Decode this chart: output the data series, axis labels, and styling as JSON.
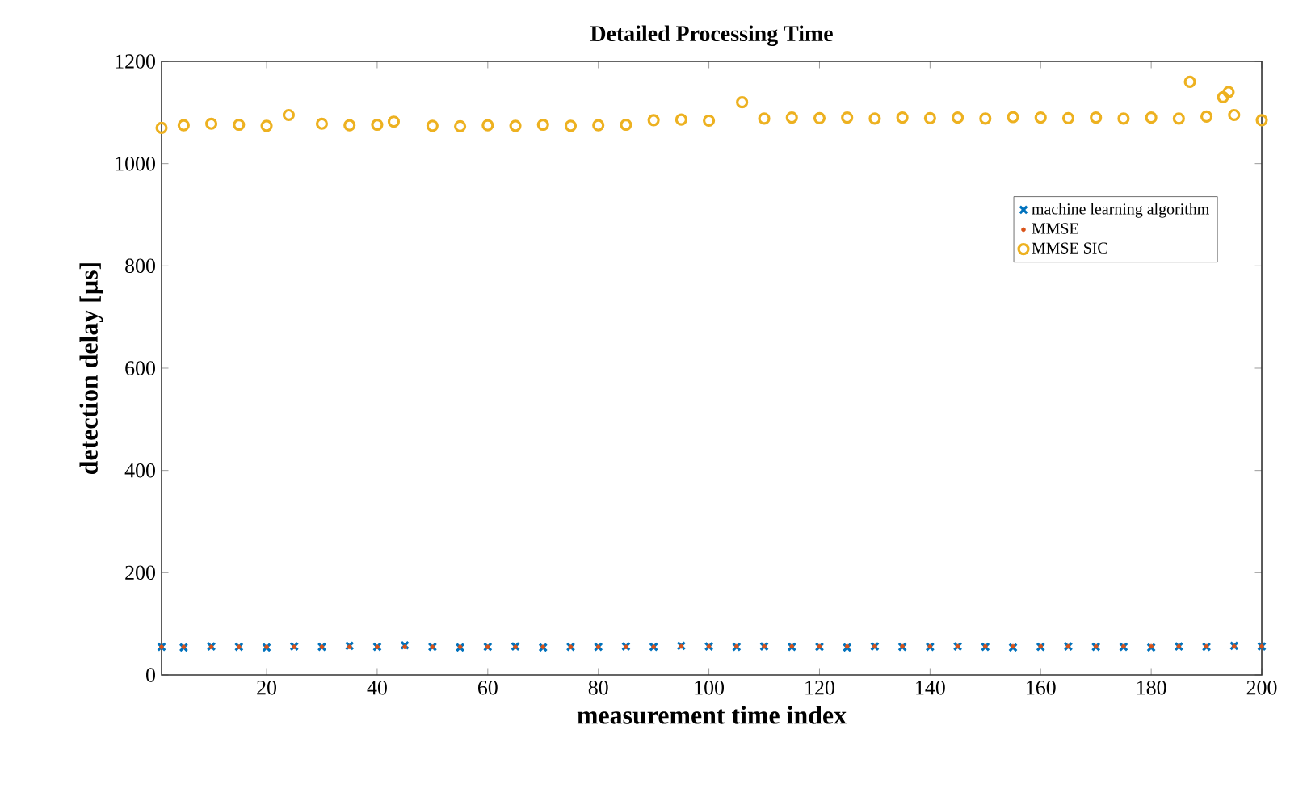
{
  "chart_data": {
    "type": "scatter",
    "title": "Detailed Processing Time",
    "xlabel": "measurement time index",
    "ylabel": "detection delay [µs]",
    "xlim": [
      1,
      200
    ],
    "ylim": [
      0,
      1200
    ],
    "xticks": [
      20,
      40,
      60,
      80,
      100,
      120,
      140,
      160,
      180,
      200
    ],
    "yticks": [
      0,
      200,
      400,
      600,
      800,
      1000,
      1200
    ],
    "grid": false,
    "legend": "top right",
    "series": [
      {
        "name": "machine learning algorithm",
        "color": "#0072bd",
        "marker": "cross",
        "x": [
          1,
          5,
          10,
          15,
          20,
          25,
          30,
          35,
          40,
          45,
          50,
          55,
          60,
          65,
          70,
          75,
          80,
          85,
          90,
          95,
          100,
          105,
          110,
          115,
          120,
          125,
          130,
          135,
          140,
          145,
          150,
          155,
          160,
          165,
          170,
          175,
          180,
          185,
          190,
          195,
          200
        ],
        "values": [
          55,
          54,
          56,
          55,
          54,
          56,
          55,
          57,
          55,
          58,
          55,
          54,
          55,
          56,
          54,
          55,
          55,
          56,
          55,
          57,
          56,
          55,
          56,
          55,
          55,
          54,
          56,
          55,
          55,
          56,
          55,
          54,
          55,
          56,
          55,
          55,
          54,
          56,
          55,
          57,
          56
        ]
      },
      {
        "name": "MMSE",
        "color": "#d95319",
        "marker": "circle",
        "x": [
          1,
          5,
          10,
          15,
          20,
          25,
          30,
          35,
          40,
          45,
          50,
          55,
          60,
          65,
          70,
          75,
          80,
          85,
          90,
          95,
          100,
          105,
          110,
          115,
          120,
          125,
          130,
          135,
          140,
          145,
          150,
          155,
          160,
          165,
          170,
          175,
          180,
          185,
          190,
          195,
          200
        ],
        "values": [
          55,
          55,
          55,
          55,
          55,
          55,
          55,
          55,
          55,
          55,
          55,
          55,
          55,
          55,
          55,
          55,
          55,
          55,
          55,
          56,
          56,
          56,
          56,
          56,
          56,
          56,
          56,
          56,
          56,
          56,
          56,
          56,
          56,
          56,
          56,
          56,
          56,
          56,
          56,
          56,
          56
        ]
      },
      {
        "name": "MMSE SIC",
        "color": "#edb120",
        "marker": "circle",
        "x": [
          1,
          5,
          10,
          15,
          20,
          24,
          30,
          35,
          40,
          43,
          50,
          55,
          60,
          65,
          70,
          75,
          80,
          85,
          90,
          95,
          100,
          106,
          110,
          115,
          120,
          125,
          130,
          135,
          140,
          145,
          150,
          155,
          160,
          165,
          170,
          175,
          180,
          185,
          187,
          190,
          193,
          194,
          195,
          200
        ],
        "values": [
          1070,
          1075,
          1078,
          1076,
          1074,
          1095,
          1078,
          1075,
          1076,
          1082,
          1074,
          1073,
          1075,
          1074,
          1076,
          1074,
          1075,
          1076,
          1085,
          1086,
          1084,
          1120,
          1088,
          1090,
          1089,
          1090,
          1088,
          1090,
          1089,
          1090,
          1088,
          1091,
          1090,
          1089,
          1090,
          1088,
          1090,
          1088,
          1160,
          1092,
          1130,
          1140,
          1095,
          1085
        ]
      }
    ]
  }
}
